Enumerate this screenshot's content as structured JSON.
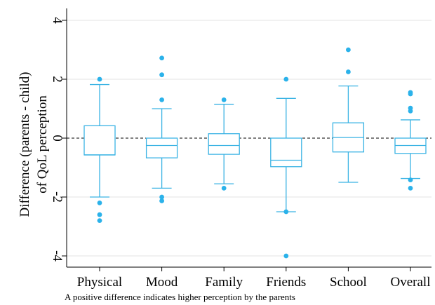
{
  "chart_data": {
    "type": "box",
    "ylabel_line1": "Difference (parents - child)",
    "ylabel_line2": "of QoL perception",
    "note": "A positive difference indicates higher perception by the parents",
    "ylim": [
      -4.4,
      4.4
    ],
    "yticks": [
      4,
      2,
      0,
      -2,
      -4
    ],
    "ytick_labels": [
      "4",
      "2",
      "0",
      "-2",
      "-4"
    ],
    "grid": "horizontal",
    "reference_line": 0,
    "colors": {
      "box": "#3ab3e4",
      "outlier": "#2bb2ea",
      "grid": "#e3e3e3",
      "reference": "#000000"
    },
    "categories": [
      "Physical",
      "Mood",
      "Family",
      "Friends",
      "School",
      "Overall"
    ],
    "boxes": [
      {
        "category": "Physical",
        "whisker_low": -2.0,
        "q1": -0.57,
        "median": -0.57,
        "q3": 0.42,
        "whisker_high": 1.82,
        "outliers": [
          2.0,
          -2.2,
          -2.6,
          -2.8
        ]
      },
      {
        "category": "Mood",
        "whisker_low": -1.7,
        "q1": -0.67,
        "median": -0.25,
        "q3": 0.0,
        "whisker_high": 1.0,
        "outliers": [
          2.72,
          2.15,
          1.3,
          -2.0,
          -2.13
        ]
      },
      {
        "category": "Family",
        "whisker_low": -1.55,
        "q1": -0.55,
        "median": -0.25,
        "q3": 0.15,
        "whisker_high": 1.15,
        "outliers": [
          1.3,
          -1.7
        ]
      },
      {
        "category": "Friends",
        "whisker_low": -2.5,
        "q1": -0.97,
        "median": -0.75,
        "q3": 0.0,
        "whisker_high": 1.35,
        "outliers": [
          2.0,
          -2.5,
          -4.0
        ]
      },
      {
        "category": "School",
        "whisker_low": -1.5,
        "q1": -0.47,
        "median": 0.02,
        "q3": 0.52,
        "whisker_high": 1.77,
        "outliers": [
          3.0,
          2.25
        ]
      },
      {
        "category": "Overall",
        "whisker_low": -1.37,
        "q1": -0.52,
        "median": -0.25,
        "q3": 0.0,
        "whisker_high": 0.62,
        "outliers": [
          1.55,
          1.5,
          1.02,
          0.92,
          -1.42,
          -1.7
        ]
      }
    ]
  }
}
